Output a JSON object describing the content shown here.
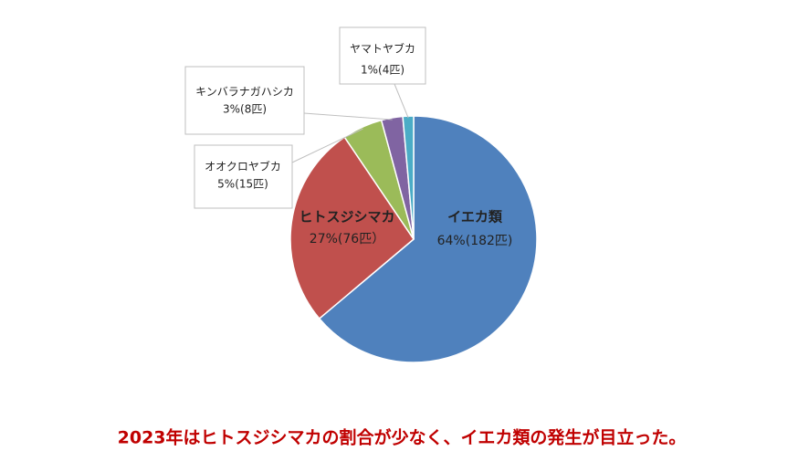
{
  "chart_data": {
    "type": "pie",
    "categories": [
      "イエカ類",
      "ヒトスジシマカ",
      "オオクロヤブカ",
      "キンバラナガハシカ",
      "ヤマトヤブカ"
    ],
    "values": [
      182,
      76,
      15,
      8,
      4
    ],
    "value_labels": [
      "64%(182匹)",
      "27%(76匹）",
      "5%(15匹)",
      "3%(8匹)",
      "1%(4匹)"
    ],
    "colors": [
      "#4f81bd",
      "#c0504d",
      "#9bbb59",
      "#8064a2",
      "#4bacc6"
    ],
    "annotation": "2023年はヒトスジシマカの割合が少なく、イエカ類の発生が目立った。"
  }
}
